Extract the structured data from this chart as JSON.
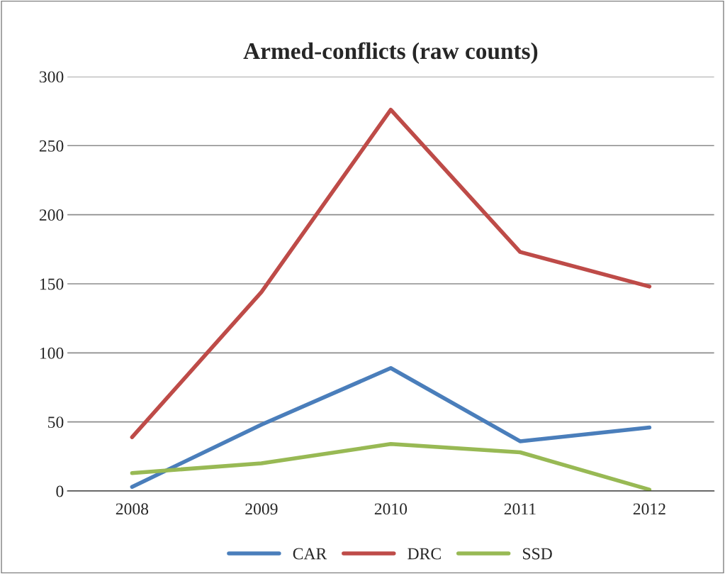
{
  "chart_data": {
    "type": "line",
    "title": "Armed-conflicts (raw counts)",
    "categories": [
      "2008",
      "2009",
      "2010",
      "2011",
      "2012"
    ],
    "series": [
      {
        "name": "CAR",
        "color": "#4a7ebb",
        "values": [
          3,
          48,
          89,
          36,
          46
        ]
      },
      {
        "name": "DRC",
        "color": "#be4b48",
        "values": [
          39,
          144,
          276,
          173,
          148
        ]
      },
      {
        "name": "SSD",
        "color": "#98b954",
        "values": [
          13,
          20,
          34,
          28,
          1
        ]
      }
    ],
    "ylim": [
      0,
      300
    ],
    "yticks": [
      0,
      50,
      100,
      150,
      200,
      250,
      300
    ],
    "grid": "y",
    "legend": "bottom",
    "marker": "none",
    "line_style": "solid"
  }
}
